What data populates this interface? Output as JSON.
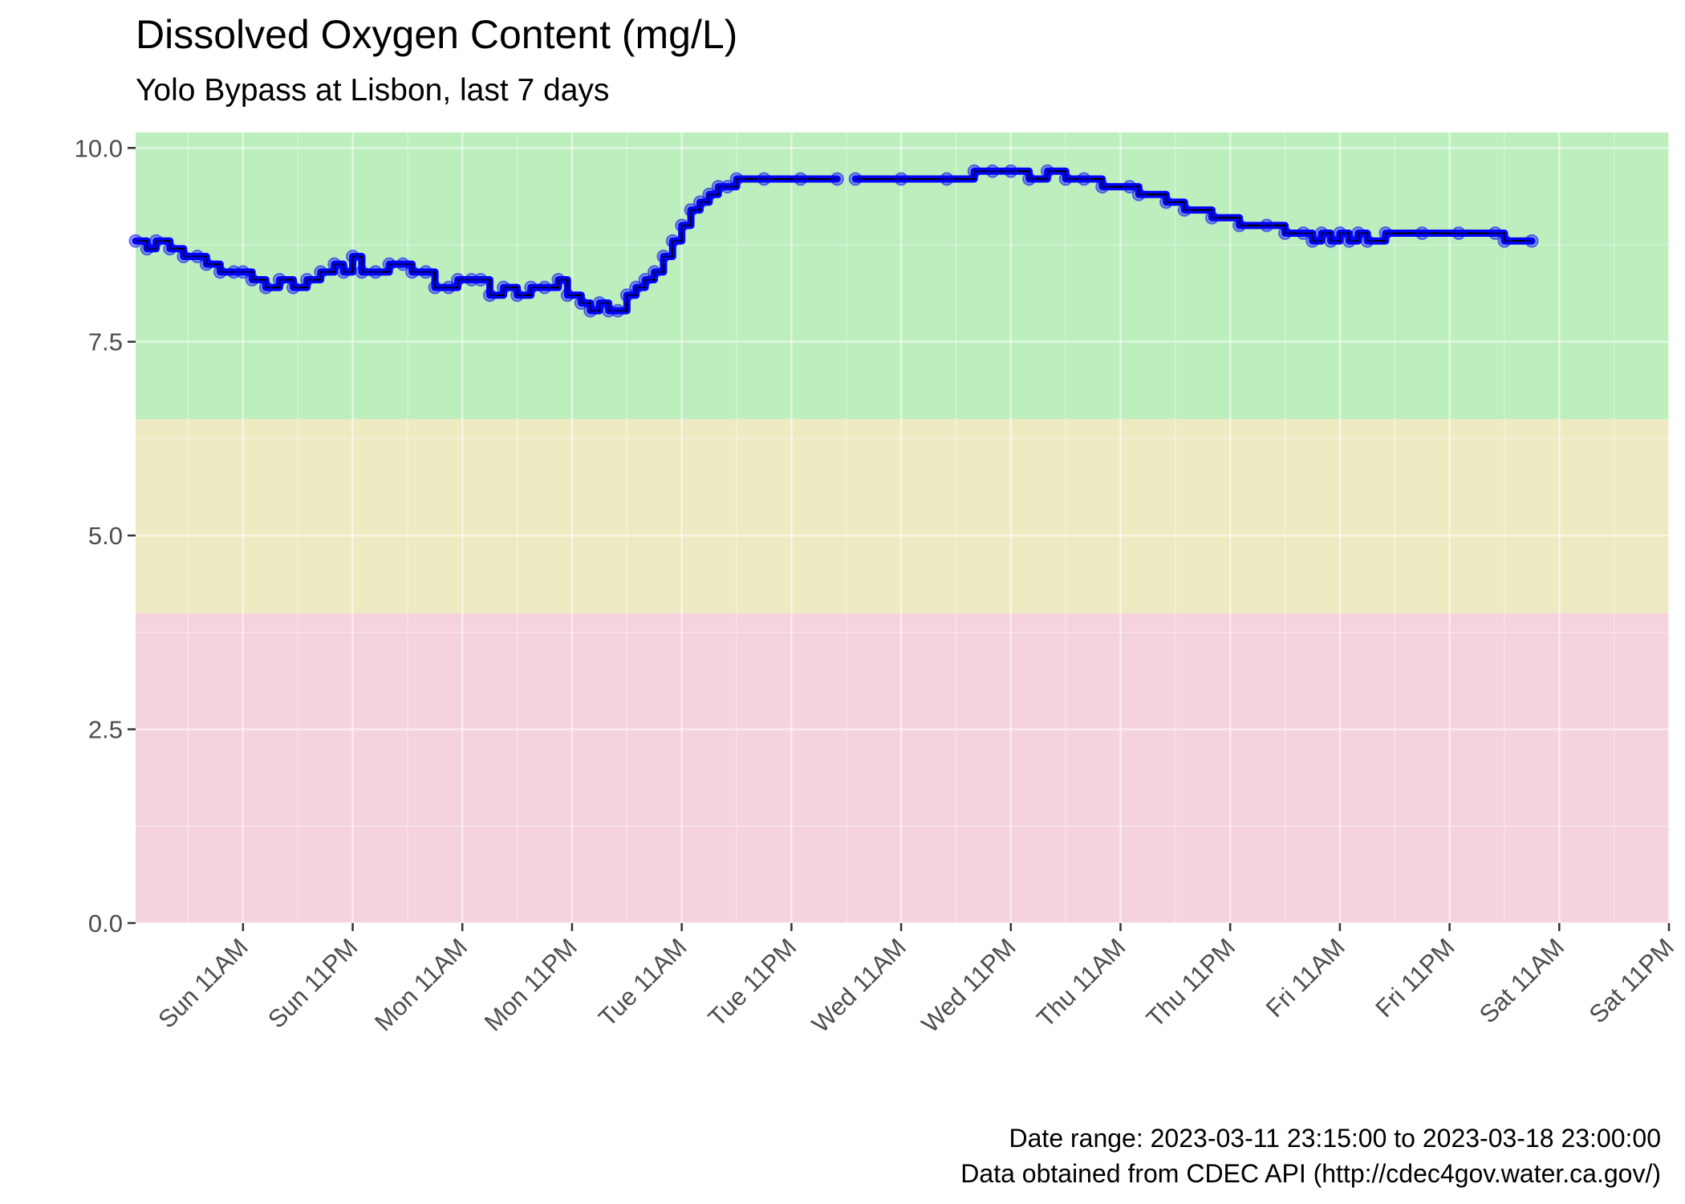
{
  "chart_data": {
    "type": "line",
    "title": "Dissolved Oxygen Content (mg/L)",
    "subtitle": "Yolo Bypass at Lisbon, last 7 days",
    "caption": [
      "Date range: 2023-03-11 23:15:00 to 2023-03-18 23:00:00",
      "Data obtained from CDEC API (http://cdec4gov.water.ca.gov/)"
    ],
    "xlabel": "",
    "ylabel": "",
    "xlim": [
      "2023-03-11 23:15",
      "2023-03-18 23:00"
    ],
    "ylim": [
      0,
      10.2
    ],
    "y_ticks": [
      "0.0",
      "2.5",
      "5.0",
      "7.5",
      "10.0"
    ],
    "x_ticks": [
      {
        "t": "2023-03-12 11:00",
        "label": "Sun 11AM"
      },
      {
        "t": "2023-03-12 23:00",
        "label": "Sun 11PM"
      },
      {
        "t": "2023-03-13 11:00",
        "label": "Mon 11AM"
      },
      {
        "t": "2023-03-13 23:00",
        "label": "Mon 11PM"
      },
      {
        "t": "2023-03-14 11:00",
        "label": "Tue 11AM"
      },
      {
        "t": "2023-03-14 23:00",
        "label": "Tue 11PM"
      },
      {
        "t": "2023-03-15 11:00",
        "label": "Wed 11AM"
      },
      {
        "t": "2023-03-15 23:00",
        "label": "Wed 11PM"
      },
      {
        "t": "2023-03-16 11:00",
        "label": "Thu 11AM"
      },
      {
        "t": "2023-03-16 23:00",
        "label": "Thu 11PM"
      },
      {
        "t": "2023-03-17 11:00",
        "label": "Fri 11AM"
      },
      {
        "t": "2023-03-17 23:00",
        "label": "Fri 11PM"
      },
      {
        "t": "2023-03-18 11:00",
        "label": "Sat 11AM"
      },
      {
        "t": "2023-03-18 23:00",
        "label": "Sat 11PM"
      }
    ],
    "bands": [
      {
        "from": 0,
        "to": 4,
        "color": "#f5d3dc"
      },
      {
        "from": 4,
        "to": 6.5,
        "color": "#eeebc3"
      },
      {
        "from": 6.5,
        "to": 10.2,
        "color": "#bdeebe"
      }
    ],
    "series": [
      {
        "color": "#0000ff",
        "segments": [
          [
            [
              "2023-03-11 23:15",
              8.8
            ],
            [
              "2023-03-12 00:30",
              8.7
            ],
            [
              "2023-03-12 01:30",
              8.8
            ],
            [
              "2023-03-12 03:00",
              8.7
            ],
            [
              "2023-03-12 04:30",
              8.6
            ],
            [
              "2023-03-12 06:00",
              8.6
            ],
            [
              "2023-03-12 07:00",
              8.5
            ],
            [
              "2023-03-12 08:30",
              8.4
            ],
            [
              "2023-03-12 10:00",
              8.4
            ],
            [
              "2023-03-12 11:00",
              8.4
            ],
            [
              "2023-03-12 12:00",
              8.3
            ],
            [
              "2023-03-12 13:30",
              8.2
            ],
            [
              "2023-03-12 15:00",
              8.3
            ],
            [
              "2023-03-12 16:30",
              8.2
            ],
            [
              "2023-03-12 18:00",
              8.3
            ],
            [
              "2023-03-12 19:30",
              8.4
            ],
            [
              "2023-03-12 21:00",
              8.5
            ],
            [
              "2023-03-12 22:00",
              8.4
            ],
            [
              "2023-03-12 23:00",
              8.6
            ],
            [
              "2023-03-13 00:00",
              8.4
            ],
            [
              "2023-03-13 01:30",
              8.4
            ],
            [
              "2023-03-13 03:00",
              8.5
            ],
            [
              "2023-03-13 04:30",
              8.5
            ],
            [
              "2023-03-13 05:30",
              8.4
            ],
            [
              "2023-03-13 07:00",
              8.4
            ],
            [
              "2023-03-13 08:00",
              8.2
            ],
            [
              "2023-03-13 09:30",
              8.2
            ],
            [
              "2023-03-13 10:30",
              8.3
            ],
            [
              "2023-03-13 12:00",
              8.3
            ],
            [
              "2023-03-13 13:00",
              8.3
            ],
            [
              "2023-03-13 14:00",
              8.1
            ],
            [
              "2023-03-13 15:30",
              8.2
            ],
            [
              "2023-03-13 17:00",
              8.1
            ],
            [
              "2023-03-13 18:30",
              8.2
            ],
            [
              "2023-03-13 20:00",
              8.2
            ],
            [
              "2023-03-13 21:30",
              8.3
            ],
            [
              "2023-03-13 22:30",
              8.1
            ],
            [
              "2023-03-14 00:00",
              8.0
            ],
            [
              "2023-03-14 01:00",
              7.9
            ],
            [
              "2023-03-14 02:00",
              8.0
            ],
            [
              "2023-03-14 03:00",
              7.9
            ],
            [
              "2023-03-14 04:00",
              7.9
            ],
            [
              "2023-03-14 05:00",
              8.1
            ],
            [
              "2023-03-14 06:00",
              8.2
            ],
            [
              "2023-03-14 07:00",
              8.3
            ],
            [
              "2023-03-14 08:00",
              8.4
            ],
            [
              "2023-03-14 09:00",
              8.6
            ],
            [
              "2023-03-14 10:00",
              8.8
            ],
            [
              "2023-03-14 11:00",
              9.0
            ],
            [
              "2023-03-14 12:00",
              9.2
            ],
            [
              "2023-03-14 13:00",
              9.3
            ],
            [
              "2023-03-14 14:00",
              9.4
            ],
            [
              "2023-03-14 15:00",
              9.5
            ],
            [
              "2023-03-14 16:00",
              9.5
            ],
            [
              "2023-03-14 17:00",
              9.6
            ],
            [
              "2023-03-14 20:00",
              9.6
            ],
            [
              "2023-03-15 00:00",
              9.6
            ],
            [
              "2023-03-15 04:00",
              9.6
            ]
          ],
          [
            [
              "2023-03-15 06:00",
              9.6
            ],
            [
              "2023-03-15 11:00",
              9.6
            ],
            [
              "2023-03-15 16:00",
              9.6
            ],
            [
              "2023-03-15 19:00",
              9.7
            ],
            [
              "2023-03-15 21:00",
              9.7
            ],
            [
              "2023-03-15 23:00",
              9.7
            ],
            [
              "2023-03-16 01:00",
              9.6
            ],
            [
              "2023-03-16 03:00",
              9.7
            ],
            [
              "2023-03-16 05:00",
              9.6
            ],
            [
              "2023-03-16 07:00",
              9.6
            ],
            [
              "2023-03-16 09:00",
              9.5
            ],
            [
              "2023-03-16 12:00",
              9.5
            ],
            [
              "2023-03-16 13:00",
              9.4
            ],
            [
              "2023-03-16 16:00",
              9.3
            ],
            [
              "2023-03-16 18:00",
              9.2
            ],
            [
              "2023-03-16 21:00",
              9.1
            ],
            [
              "2023-03-17 00:00",
              9.0
            ],
            [
              "2023-03-17 03:00",
              9.0
            ],
            [
              "2023-03-17 05:00",
              8.9
            ],
            [
              "2023-03-17 07:00",
              8.9
            ],
            [
              "2023-03-17 08:00",
              8.8
            ],
            [
              "2023-03-17 09:00",
              8.9
            ],
            [
              "2023-03-17 10:00",
              8.8
            ],
            [
              "2023-03-17 11:00",
              8.9
            ],
            [
              "2023-03-17 12:00",
              8.8
            ],
            [
              "2023-03-17 13:00",
              8.9
            ],
            [
              "2023-03-17 14:00",
              8.8
            ],
            [
              "2023-03-17 16:00",
              8.9
            ],
            [
              "2023-03-17 20:00",
              8.9
            ],
            [
              "2023-03-18 00:00",
              8.9
            ],
            [
              "2023-03-18 04:00",
              8.9
            ],
            [
              "2023-03-18 05:00",
              8.8
            ],
            [
              "2023-03-18 08:00",
              8.8
            ]
          ]
        ]
      }
    ]
  }
}
